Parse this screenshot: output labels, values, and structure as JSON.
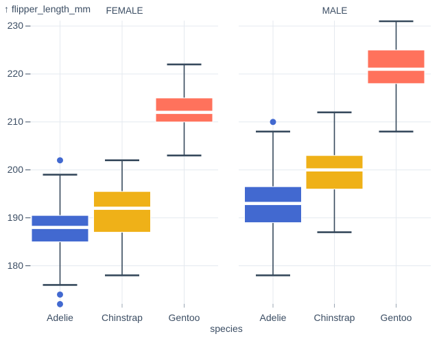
{
  "chart_data": {
    "type": "boxplot",
    "title": "",
    "ylabel": "flipper_length_mm",
    "ylabel_display": "↑ flipper_length_mm",
    "xlabel": "species",
    "facet_by": "sex",
    "facets": [
      {
        "label": "FEMALE"
      },
      {
        "label": "MALE"
      }
    ],
    "categories": [
      "Adelie",
      "Chinstrap",
      "Gentoo"
    ],
    "yticks": [
      230,
      220,
      210,
      200,
      190,
      180
    ],
    "y_domain": [
      171,
      232
    ],
    "grid": true,
    "legend": false,
    "series_colors": {
      "Adelie": "#4269d0",
      "Chinstrap": "#efb118",
      "Gentoo": "#ff725c"
    },
    "colors": {
      "background": "#ffffff",
      "grid": "#e4e9ef",
      "rule": "#36495c",
      "text": "#3b4d63",
      "median": "#ffffff",
      "box_border": "#ffffff",
      "axis_tick": "#98a4b1"
    },
    "boxes": [
      {
        "facet": "FEMALE",
        "species": "Adelie",
        "whisker_low": 176,
        "q1": 185,
        "median": 188,
        "q3": 190.5,
        "whisker_high": 199,
        "outliers": [
          202,
          174,
          172
        ]
      },
      {
        "facet": "FEMALE",
        "species": "Chinstrap",
        "whisker_low": 178,
        "q1": 187,
        "median": 192,
        "q3": 195.5,
        "whisker_high": 202,
        "outliers": []
      },
      {
        "facet": "FEMALE",
        "species": "Gentoo",
        "whisker_low": 203,
        "q1": 210,
        "median": 212,
        "q3": 215,
        "whisker_high": 222,
        "outliers": []
      },
      {
        "facet": "MALE",
        "species": "Adelie",
        "whisker_low": 178,
        "q1": 189,
        "median": 193,
        "q3": 196.5,
        "whisker_high": 208,
        "outliers": [
          210
        ]
      },
      {
        "facet": "MALE",
        "species": "Chinstrap",
        "whisker_low": 187,
        "q1": 196,
        "median": 200,
        "q3": 203,
        "whisker_high": 212,
        "outliers": []
      },
      {
        "facet": "MALE",
        "species": "Gentoo",
        "whisker_low": 208,
        "q1": 218,
        "median": 221,
        "q3": 225,
        "whisker_high": 231,
        "outliers": []
      }
    ]
  }
}
